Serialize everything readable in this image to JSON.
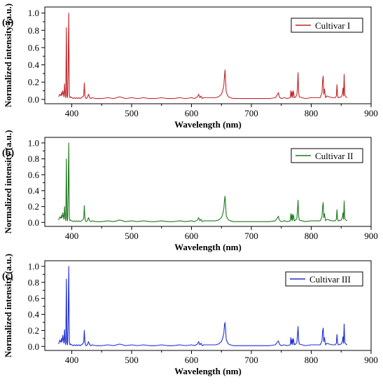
{
  "figure": {
    "panels_note": "",
    "colors": {
      "red": "#c0262a",
      "green": "#1f7a1f",
      "blue": "#1f2fd0",
      "axis": "#000000"
    }
  },
  "chart_data": [
    {
      "type": "line",
      "panel_label": "(a)",
      "xlabel": "Wavelength (nm)",
      "ylabel": "Normalized intensity (a.u.)",
      "xlim": [
        355,
        900
      ],
      "ylim": [
        -0.05,
        1.07
      ],
      "xticks": [
        400,
        500,
        600,
        700,
        800,
        900
      ],
      "yticks": [
        0.0,
        0.2,
        0.4,
        0.6,
        0.8,
        1.0
      ],
      "xtick_labels": [
        "400",
        "500",
        "600",
        "700",
        "800",
        "900"
      ],
      "ytick_labels": [
        "0.0",
        "0.2",
        "0.4",
        "0.6",
        "0.8",
        "1.0"
      ],
      "grid": false,
      "legend_position": "top-right",
      "series": [
        {
          "name": "Cultivar I",
          "color": "#c0262a",
          "x": [
            378,
            380,
            382,
            383,
            384,
            385,
            386,
            387,
            388,
            389,
            390,
            391,
            392,
            393,
            394,
            395,
            396,
            397,
            398,
            400,
            402,
            404,
            406,
            408,
            410,
            412,
            414,
            416,
            418,
            420,
            421,
            422,
            423,
            424,
            426,
            428,
            430,
            432,
            434,
            440,
            450,
            460,
            470,
            480,
            490,
            500,
            510,
            520,
            530,
            540,
            550,
            560,
            570,
            580,
            590,
            600,
            605,
            610,
            612,
            614,
            616,
            618,
            620,
            630,
            640,
            645,
            650,
            652,
            654,
            655,
            656,
            657,
            658,
            660,
            662,
            665,
            670,
            680,
            690,
            700,
            710,
            720,
            730,
            740,
            742,
            744,
            745,
            746,
            747,
            748,
            750,
            755,
            760,
            765,
            766,
            767,
            768,
            769,
            770,
            772,
            774,
            776,
            777,
            778,
            779,
            780,
            785,
            790,
            800,
            810,
            815,
            818,
            819,
            820,
            821,
            822,
            824,
            826,
            830,
            835,
            840,
            842,
            843,
            844,
            845,
            846,
            850,
            852,
            853,
            854,
            855,
            856,
            858,
            860
          ],
          "y": [
            0.03,
            0.06,
            0.04,
            0.08,
            0.05,
            0.1,
            0.07,
            0.03,
            0.18,
            0.05,
            0.02,
            0.83,
            0.04,
            0.02,
            0.33,
            1.0,
            0.05,
            0.02,
            0.03,
            0.02,
            0.01,
            0.02,
            0.01,
            0.02,
            0.01,
            0.02,
            0.01,
            0.02,
            0.03,
            0.04,
            0.19,
            0.05,
            0.02,
            0.01,
            0.02,
            0.06,
            0.02,
            0.01,
            0.02,
            0.01,
            0.01,
            0.02,
            0.01,
            0.03,
            0.01,
            0.02,
            0.01,
            0.02,
            0.01,
            0.01,
            0.02,
            0.01,
            0.01,
            0.02,
            0.01,
            0.02,
            0.01,
            0.03,
            0.06,
            0.02,
            0.04,
            0.01,
            0.02,
            0.02,
            0.02,
            0.03,
            0.06,
            0.1,
            0.16,
            0.26,
            0.34,
            0.22,
            0.09,
            0.05,
            0.03,
            0.02,
            0.01,
            0.01,
            0.01,
            0.01,
            0.01,
            0.01,
            0.01,
            0.02,
            0.04,
            0.06,
            0.08,
            0.05,
            0.03,
            0.02,
            0.01,
            0.02,
            0.01,
            0.02,
            0.1,
            0.03,
            0.09,
            0.02,
            0.1,
            0.02,
            0.03,
            0.05,
            0.14,
            0.31,
            0.08,
            0.03,
            0.02,
            0.01,
            0.02,
            0.02,
            0.02,
            0.08,
            0.22,
            0.27,
            0.06,
            0.12,
            0.02,
            0.04,
            0.03,
            0.02,
            0.02,
            0.04,
            0.17,
            0.05,
            0.02,
            0.02,
            0.03,
            0.06,
            0.13,
            0.04,
            0.29,
            0.05,
            0.03,
            0.02
          ]
        }
      ]
    },
    {
      "type": "line",
      "panel_label": "(b)",
      "xlabel": "Wavelength (nm)",
      "ylabel": "Normalized intensity (a.u.)",
      "xlim": [
        355,
        900
      ],
      "ylim": [
        -0.05,
        1.07
      ],
      "xticks": [
        400,
        500,
        600,
        700,
        800,
        900
      ],
      "yticks": [
        0.0,
        0.2,
        0.4,
        0.6,
        0.8,
        1.0
      ],
      "xtick_labels": [
        "400",
        "500",
        "600",
        "700",
        "800",
        "900"
      ],
      "ytick_labels": [
        "0.0",
        "0.2",
        "0.4",
        "0.6",
        "0.8",
        "1.0"
      ],
      "grid": false,
      "legend_position": "top-right",
      "series": [
        {
          "name": "Cultivar II",
          "color": "#1f7a1f",
          "x": [
            378,
            380,
            382,
            383,
            384,
            385,
            386,
            387,
            388,
            389,
            390,
            391,
            392,
            393,
            394,
            395,
            396,
            397,
            398,
            400,
            402,
            404,
            406,
            408,
            410,
            412,
            414,
            416,
            418,
            420,
            421,
            422,
            423,
            424,
            426,
            428,
            430,
            432,
            434,
            440,
            450,
            460,
            470,
            480,
            490,
            500,
            510,
            520,
            530,
            540,
            550,
            560,
            570,
            580,
            590,
            600,
            605,
            610,
            612,
            614,
            616,
            618,
            620,
            630,
            640,
            645,
            650,
            652,
            654,
            655,
            656,
            657,
            658,
            660,
            662,
            665,
            670,
            680,
            690,
            700,
            710,
            720,
            730,
            740,
            742,
            744,
            745,
            746,
            747,
            748,
            750,
            755,
            760,
            765,
            766,
            767,
            768,
            769,
            770,
            772,
            774,
            776,
            777,
            778,
            779,
            780,
            785,
            790,
            800,
            810,
            815,
            818,
            819,
            820,
            821,
            822,
            824,
            826,
            830,
            835,
            840,
            842,
            843,
            844,
            845,
            846,
            850,
            852,
            853,
            854,
            855,
            856,
            858,
            860
          ],
          "y": [
            0.03,
            0.07,
            0.05,
            0.09,
            0.06,
            0.12,
            0.08,
            0.04,
            0.2,
            0.06,
            0.02,
            0.8,
            0.05,
            0.02,
            0.35,
            1.0,
            0.06,
            0.02,
            0.03,
            0.02,
            0.01,
            0.02,
            0.01,
            0.02,
            0.01,
            0.02,
            0.01,
            0.02,
            0.03,
            0.05,
            0.21,
            0.06,
            0.02,
            0.01,
            0.02,
            0.06,
            0.02,
            0.01,
            0.02,
            0.01,
            0.01,
            0.02,
            0.01,
            0.03,
            0.01,
            0.02,
            0.01,
            0.02,
            0.01,
            0.01,
            0.02,
            0.01,
            0.01,
            0.02,
            0.01,
            0.02,
            0.01,
            0.03,
            0.06,
            0.02,
            0.04,
            0.01,
            0.02,
            0.02,
            0.02,
            0.03,
            0.06,
            0.1,
            0.17,
            0.27,
            0.33,
            0.23,
            0.09,
            0.05,
            0.03,
            0.02,
            0.01,
            0.01,
            0.01,
            0.01,
            0.01,
            0.01,
            0.01,
            0.02,
            0.04,
            0.06,
            0.08,
            0.05,
            0.03,
            0.02,
            0.01,
            0.02,
            0.01,
            0.02,
            0.11,
            0.03,
            0.1,
            0.02,
            0.1,
            0.02,
            0.03,
            0.05,
            0.15,
            0.28,
            0.08,
            0.03,
            0.02,
            0.01,
            0.02,
            0.02,
            0.02,
            0.07,
            0.2,
            0.25,
            0.06,
            0.11,
            0.02,
            0.04,
            0.03,
            0.02,
            0.02,
            0.04,
            0.16,
            0.05,
            0.02,
            0.02,
            0.03,
            0.06,
            0.12,
            0.04,
            0.27,
            0.05,
            0.03,
            0.02
          ]
        }
      ]
    },
    {
      "type": "line",
      "panel_label": "(c)",
      "xlabel": "Wavelength (nm)",
      "ylabel": "Normalized intensity (a.u.)",
      "xlim": [
        355,
        900
      ],
      "ylim": [
        -0.05,
        1.07
      ],
      "xticks": [
        400,
        500,
        600,
        700,
        800,
        900
      ],
      "yticks": [
        0.0,
        0.2,
        0.4,
        0.6,
        0.8,
        1.0
      ],
      "xtick_labels": [
        "400",
        "500",
        "600",
        "700",
        "800",
        "900"
      ],
      "ytick_labels": [
        "0.0",
        "0.2",
        "0.4",
        "0.6",
        "0.8",
        "1.0"
      ],
      "grid": false,
      "legend_position": "top-right",
      "series": [
        {
          "name": "Cultivar III",
          "color": "#1f2fd0",
          "x": [
            378,
            380,
            382,
            383,
            384,
            385,
            386,
            387,
            388,
            389,
            390,
            391,
            392,
            393,
            394,
            395,
            396,
            397,
            398,
            400,
            402,
            404,
            406,
            408,
            410,
            412,
            414,
            416,
            418,
            420,
            421,
            422,
            423,
            424,
            426,
            428,
            430,
            432,
            434,
            440,
            450,
            460,
            470,
            480,
            490,
            500,
            510,
            520,
            530,
            540,
            550,
            560,
            570,
            580,
            590,
            600,
            605,
            610,
            612,
            614,
            616,
            618,
            620,
            630,
            640,
            645,
            650,
            652,
            654,
            655,
            656,
            657,
            658,
            660,
            662,
            665,
            670,
            680,
            690,
            700,
            710,
            720,
            730,
            740,
            742,
            744,
            745,
            746,
            747,
            748,
            750,
            755,
            760,
            765,
            766,
            767,
            768,
            769,
            770,
            772,
            774,
            776,
            777,
            778,
            779,
            780,
            785,
            790,
            800,
            810,
            815,
            818,
            819,
            820,
            821,
            822,
            824,
            826,
            830,
            835,
            840,
            842,
            843,
            844,
            845,
            846,
            850,
            852,
            853,
            854,
            855,
            856,
            858,
            860
          ],
          "y": [
            0.03,
            0.08,
            0.05,
            0.1,
            0.06,
            0.14,
            0.09,
            0.04,
            0.21,
            0.06,
            0.02,
            0.84,
            0.05,
            0.02,
            0.33,
            1.0,
            0.06,
            0.02,
            0.03,
            0.02,
            0.01,
            0.02,
            0.01,
            0.02,
            0.01,
            0.02,
            0.01,
            0.02,
            0.03,
            0.05,
            0.2,
            0.06,
            0.02,
            0.01,
            0.02,
            0.06,
            0.02,
            0.01,
            0.02,
            0.01,
            0.01,
            0.02,
            0.01,
            0.03,
            0.01,
            0.02,
            0.01,
            0.02,
            0.01,
            0.01,
            0.02,
            0.01,
            0.01,
            0.02,
            0.01,
            0.02,
            0.01,
            0.03,
            0.06,
            0.02,
            0.04,
            0.01,
            0.02,
            0.02,
            0.02,
            0.03,
            0.06,
            0.1,
            0.16,
            0.26,
            0.3,
            0.22,
            0.09,
            0.05,
            0.03,
            0.02,
            0.01,
            0.01,
            0.01,
            0.01,
            0.01,
            0.01,
            0.01,
            0.02,
            0.04,
            0.06,
            0.07,
            0.05,
            0.03,
            0.02,
            0.01,
            0.02,
            0.01,
            0.02,
            0.11,
            0.03,
            0.09,
            0.02,
            0.1,
            0.02,
            0.03,
            0.05,
            0.14,
            0.25,
            0.08,
            0.03,
            0.02,
            0.01,
            0.02,
            0.02,
            0.02,
            0.07,
            0.19,
            0.23,
            0.06,
            0.11,
            0.02,
            0.04,
            0.03,
            0.02,
            0.02,
            0.04,
            0.15,
            0.05,
            0.02,
            0.02,
            0.03,
            0.06,
            0.12,
            0.04,
            0.28,
            0.05,
            0.03,
            0.02
          ]
        }
      ]
    }
  ]
}
